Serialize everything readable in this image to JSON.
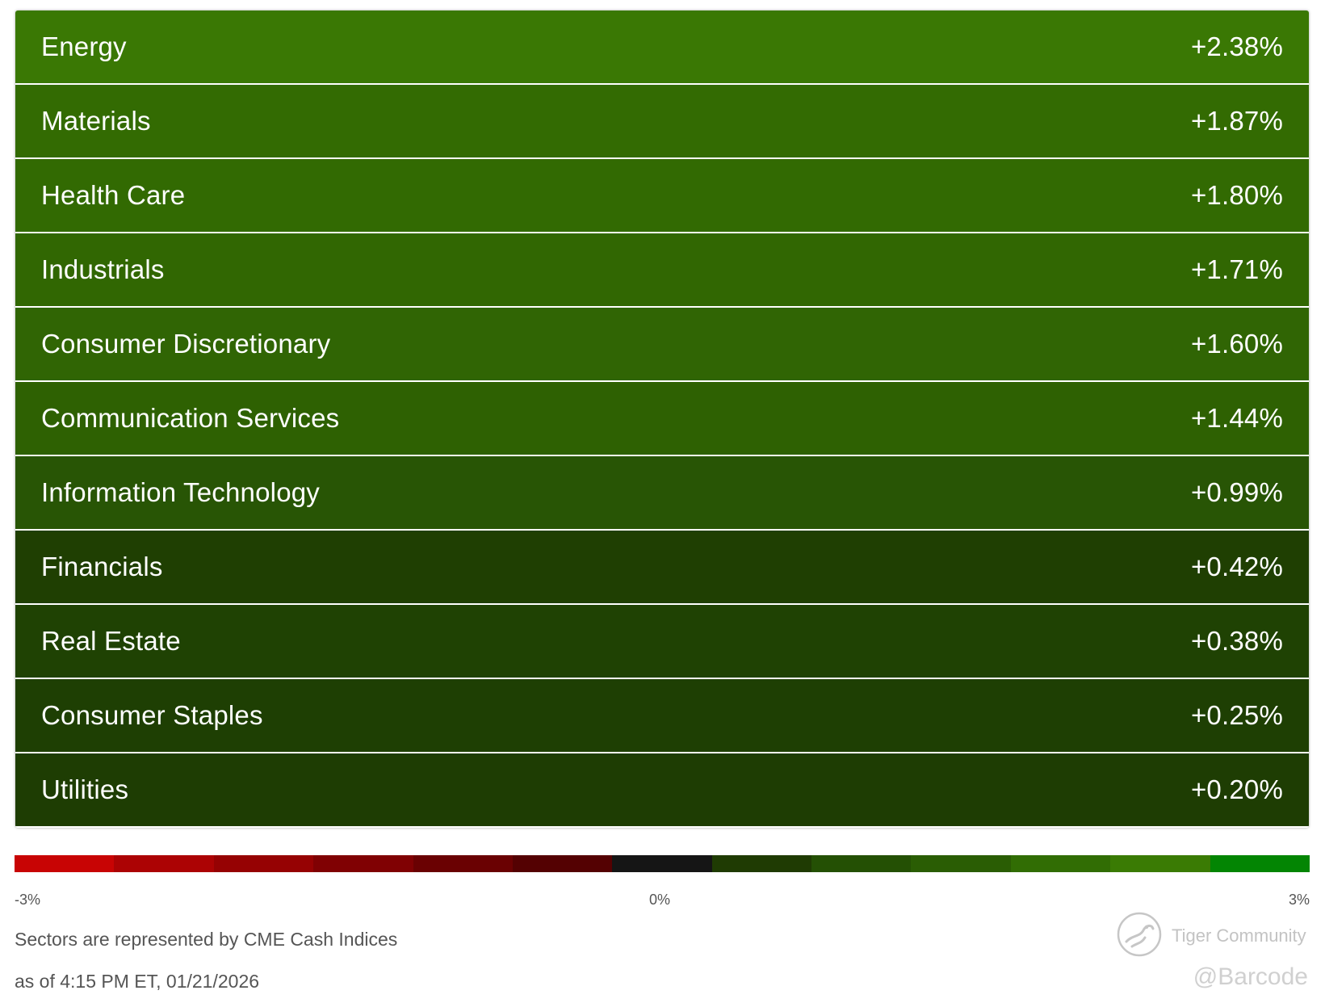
{
  "chart_data": {
    "type": "table",
    "title": "",
    "rows": [
      {
        "name": "Energy",
        "value": 2.38,
        "label": "+2.38%",
        "color": "#3a7804"
      },
      {
        "name": "Materials",
        "value": 1.87,
        "label": "+1.87%",
        "color": "#336b02"
      },
      {
        "name": "Health Care",
        "value": 1.8,
        "label": "+1.80%",
        "color": "#326a02"
      },
      {
        "name": "Industrials",
        "value": 1.71,
        "label": "+1.71%",
        "color": "#316702"
      },
      {
        "name": "Consumer Discretionary",
        "value": 1.6,
        "label": "+1.60%",
        "color": "#306504"
      },
      {
        "name": "Communication Services",
        "value": 1.44,
        "label": "+1.44%",
        "color": "#2e6102"
      },
      {
        "name": "Information Technology",
        "value": 0.99,
        "label": "+0.99%",
        "color": "#285505"
      },
      {
        "name": "Financials",
        "value": 0.42,
        "label": "+0.42%",
        "color": "#1f3f02"
      },
      {
        "name": "Real Estate",
        "value": 0.38,
        "label": "+0.38%",
        "color": "#1f4203"
      },
      {
        "name": "Consumer Staples",
        "value": 0.25,
        "label": "+0.25%",
        "color": "#1e3f03"
      },
      {
        "name": "Utilities",
        "value": 0.2,
        "label": "+0.20%",
        "color": "#1e3d03"
      }
    ],
    "scale": {
      "min": -3,
      "max": 3,
      "min_label": "-3%",
      "mid_label": "0%",
      "max_label": "3%",
      "colors": [
        "#c80404",
        "#ac0304",
        "#960203",
        "#800103",
        "#6a0102",
        "#540102",
        "#151515",
        "#1f3b03",
        "#245004",
        "#2a5d04",
        "#316d04",
        "#3a7b04",
        "#038503"
      ]
    }
  },
  "footer": {
    "source_note": "Sectors are represented by CME Cash Indices",
    "timestamp": "as of 4:15 PM ET, 01/21/2026"
  },
  "watermark": {
    "brand": "Tiger Community",
    "handle": "@Barcode",
    "logo_icon": "tiger-logo-icon"
  }
}
